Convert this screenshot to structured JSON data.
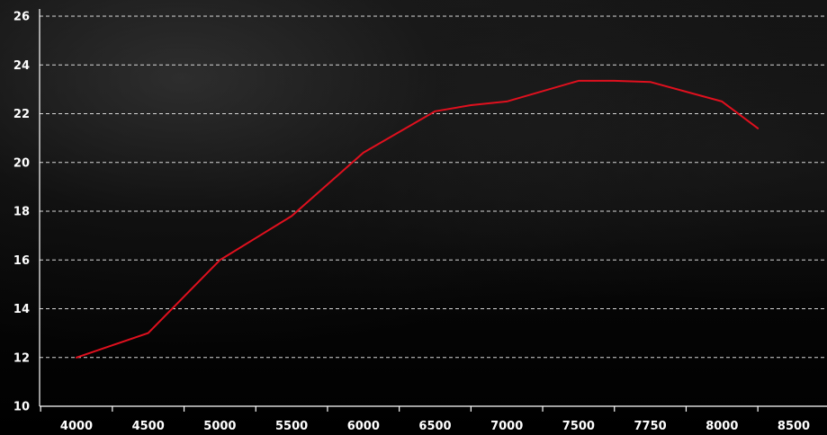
{
  "chart_data": {
    "type": "line",
    "title": "",
    "xlabel": "",
    "ylabel": "",
    "categories": [
      "4000",
      "4500",
      "5000",
      "5500",
      "6000",
      "6500",
      "7000",
      "7500",
      "7750",
      "8000",
      "8500"
    ],
    "series": [
      {
        "color": "#e0101e",
        "points": [
          {
            "x": 4000,
            "y": 12.0
          },
          {
            "x": 4250,
            "y": 12.5
          },
          {
            "x": 4500,
            "y": 13.0
          },
          {
            "x": 5000,
            "y": 16.0
          },
          {
            "x": 5250,
            "y": 16.9
          },
          {
            "x": 5500,
            "y": 17.8
          },
          {
            "x": 6000,
            "y": 20.4
          },
          {
            "x": 6500,
            "y": 22.1
          },
          {
            "x": 6750,
            "y": 22.35
          },
          {
            "x": 7000,
            "y": 22.5
          },
          {
            "x": 7500,
            "y": 23.35
          },
          {
            "x": 7625,
            "y": 23.35
          },
          {
            "x": 7750,
            "y": 23.3
          },
          {
            "x": 8000,
            "y": 22.5
          },
          {
            "x": 8250,
            "y": 21.4
          }
        ]
      }
    ],
    "ylim": [
      10,
      26
    ],
    "yticks": [
      "10",
      "12",
      "14",
      "16",
      "18",
      "20",
      "22",
      "24",
      "26"
    ],
    "grid": true,
    "legend": "none",
    "colors": {
      "background": "#000000",
      "grid": "#d8d8d8",
      "axis": "#ffffff",
      "text": "#ffffff",
      "line": "#e0101e"
    }
  }
}
